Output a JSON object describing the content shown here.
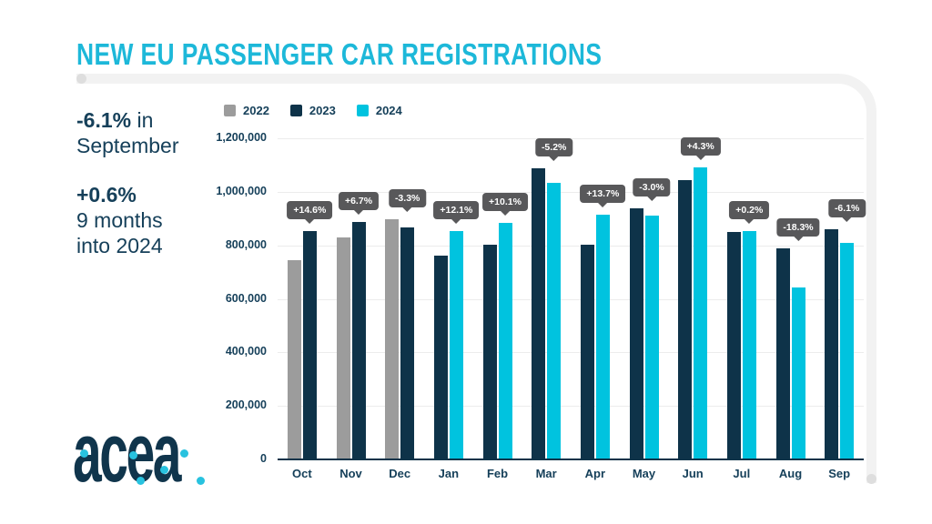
{
  "header": {
    "title": "NEW EU PASSENGER CAR REGISTRATIONS"
  },
  "stats": {
    "sep_bold": "-6.1%",
    "sep_rest": " in",
    "sep_line2": "September",
    "ytd_bold": "+0.6%",
    "ytd_line2": "9 months",
    "ytd_line3": "into 2024"
  },
  "logo": {
    "text": "acea"
  },
  "colors": {
    "accent_cyan": "#1db8d9",
    "navy_text": "#16405a",
    "badge_bg": "#58585a",
    "grid_line": "#ececec",
    "frame_gray": "#f2f2f2",
    "frame_dot": "#dedede"
  },
  "chart_data": {
    "type": "bar",
    "title": "NEW EU PASSENGER CAR REGISTRATIONS",
    "categories": [
      "Oct",
      "Nov",
      "Dec",
      "Jan",
      "Feb",
      "Mar",
      "Apr",
      "May",
      "Jun",
      "Jul",
      "Aug",
      "Sep"
    ],
    "series": [
      {
        "name": "2022",
        "color": "#9c9c9c",
        "values": [
          746000,
          830000,
          897000,
          null,
          null,
          null,
          null,
          null,
          null,
          null,
          null,
          null
        ]
      },
      {
        "name": "2023",
        "color": "#0e3349",
        "values": [
          855000,
          886000,
          867000,
          760000,
          803000,
          1088000,
          803000,
          939000,
          1045000,
          850000,
          788000,
          861000
        ]
      },
      {
        "name": "2024",
        "color": "#00c3df",
        "values": [
          null,
          null,
          null,
          852000,
          884000,
          1032000,
          914000,
          912000,
          1090000,
          852000,
          644000,
          809000
        ]
      }
    ],
    "change_labels": [
      "+14.6%",
      "+6.7%",
      "-3.3%",
      "+12.1%",
      "+10.1%",
      "-5.2%",
      "+13.7%",
      "-3.0%",
      "+4.3%",
      "+0.2%",
      "-18.3%",
      "-6.1%"
    ],
    "y_ticks": [
      {
        "value": 1200000,
        "label": "1,200,000"
      },
      {
        "value": 1000000,
        "label": "1,000,000"
      },
      {
        "value": 800000,
        "label": "800,000"
      },
      {
        "value": 600000,
        "label": "600,000"
      },
      {
        "value": 400000,
        "label": "400,000"
      },
      {
        "value": 200000,
        "label": "200,000"
      },
      {
        "value": 0,
        "label": "0"
      }
    ],
    "ylim": [
      0,
      1200000
    ],
    "grid": true,
    "legend_position": "top-left"
  }
}
